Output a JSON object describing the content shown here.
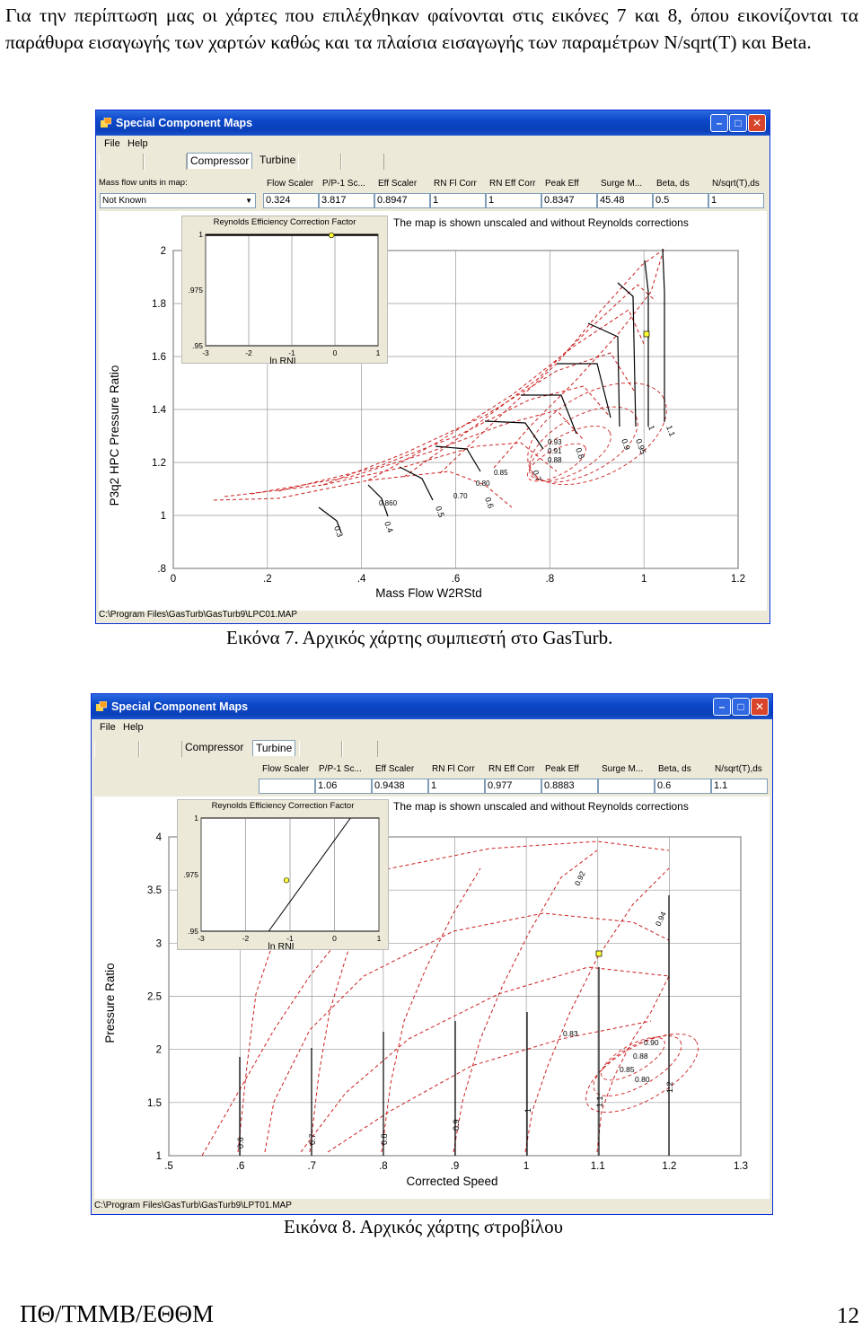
{
  "intro_text": "Για την περίπτωση μας οι χάρτες που επιλέχθηκαν φαίνονται στις εικόνες 7 και 8, όπου εικονίζονται τα παράθυρα εισαγωγής των χαρτών καθώς και τα πλαίσια εισαγωγής των παραμέτρων N/sqrt(T) και Beta.",
  "figure1": {
    "window_title": "Special Component Maps",
    "menu": [
      "File",
      "Help"
    ],
    "tabs": [
      "Compressor",
      "Turbine"
    ],
    "selected_tab": "Compressor",
    "massflow_label": "Mass flow units in map:",
    "massflow_value": "Not Known",
    "columns": [
      "Flow Scaler",
      "P/P-1 Sc...",
      "Eff Scaler",
      "RN Fl Corr",
      "RN Eff Corr",
      "Peak Eff",
      "Surge M...",
      "Beta, ds",
      "N/sqrt(T),ds"
    ],
    "values": [
      "0.324",
      "3.817",
      "0.8947",
      "1",
      "1",
      "0.8347",
      "45.48",
      "0.5",
      "1"
    ],
    "note": "The map is shown unscaled and without Reynolds corrections",
    "inset": {
      "title": "Reynolds Efficiency Correction Factor",
      "xlabel": "ln RNI",
      "xticks": [
        "-3",
        "-2",
        "-1",
        "0",
        "1"
      ],
      "yticks": [
        "1",
        ".975",
        ".95"
      ]
    },
    "xlabel": "Mass Flow W2RStd",
    "ylabel": "P3q2   HPC Pressure Ratio",
    "xticks": [
      "0",
      ".2",
      ".4",
      ".6",
      ".8",
      "1",
      "1.2"
    ],
    "yticks": [
      "2",
      "1.8",
      "1.6",
      "1.4",
      "1.2",
      "1",
      ".8"
    ],
    "speed_labels": [
      "0.3",
      "0.4",
      "0.5",
      "0.6",
      "0.7",
      "0.8",
      "0.9",
      "0.95",
      "1",
      "1.1"
    ],
    "eff_labels": [
      "0.93",
      "0.91",
      "0.88",
      "0.85",
      "0.80",
      "0.70",
      "0.860"
    ],
    "status": "C:\\Program Files\\GasTurb\\GasTurb9\\LPC01.MAP",
    "caption": "Εικόνα 7. Αρχικός χάρτης συμπιεστή στο GasTurb."
  },
  "figure2": {
    "window_title": "Special Component Maps",
    "menu": [
      "File",
      "Help"
    ],
    "tabs": [
      "Compressor",
      "Turbine"
    ],
    "selected_tab": "Turbine",
    "columns": [
      "Flow Scaler",
      "P/P-1 Sc...",
      "Eff Scaler",
      "RN Fl Corr",
      "RN Eff Corr",
      "Peak Eff",
      "Surge M...",
      "Beta, ds",
      "N/sqrt(T),ds"
    ],
    "values": [
      "",
      "1.06",
      "0.9438",
      "1",
      "0.977",
      "0.8883",
      "",
      "0.6",
      "1.1"
    ],
    "note": "The map is shown unscaled and without Reynolds corrections",
    "inset": {
      "title": "Reynolds Efficiency Correction Factor",
      "xlabel": "ln RNI",
      "xticks": [
        "-3",
        "-2",
        "-1",
        "0",
        "1"
      ],
      "yticks": [
        "1",
        ".975",
        ".95"
      ]
    },
    "xlabel": "Corrected Speed",
    "ylabel": "Pressure Ratio",
    "xticks": [
      ".5",
      ".6",
      ".7",
      ".8",
      ".9",
      "1",
      "1.1",
      "1.2",
      "1.3"
    ],
    "yticks": [
      "4",
      "3.5",
      "3",
      "2.5",
      "2",
      "1.5",
      "1"
    ],
    "speed_labels": [
      "0.6",
      "0.7",
      "0.8",
      "0.9",
      "1",
      "1.1",
      "1.2"
    ],
    "eff_labels": [
      "0.92",
      "0.94",
      "0.83",
      "0.90",
      "0.88",
      "0.85",
      "0.80"
    ],
    "status": "C:\\Program Files\\GasTurb\\GasTurb9\\LPT01.MAP",
    "caption": "Εικόνα 8. Αρχικός χάρτης στροβίλου"
  },
  "footer": {
    "left": "ΠΘ/ΤΜΜΒ/ΕΘΘΜ",
    "page": "12"
  },
  "colors": {
    "title_bar": "#0c48c8",
    "map_dashed": "#cc1f1f",
    "speed_lines": "#000000",
    "operating_point": "#ffff33"
  }
}
